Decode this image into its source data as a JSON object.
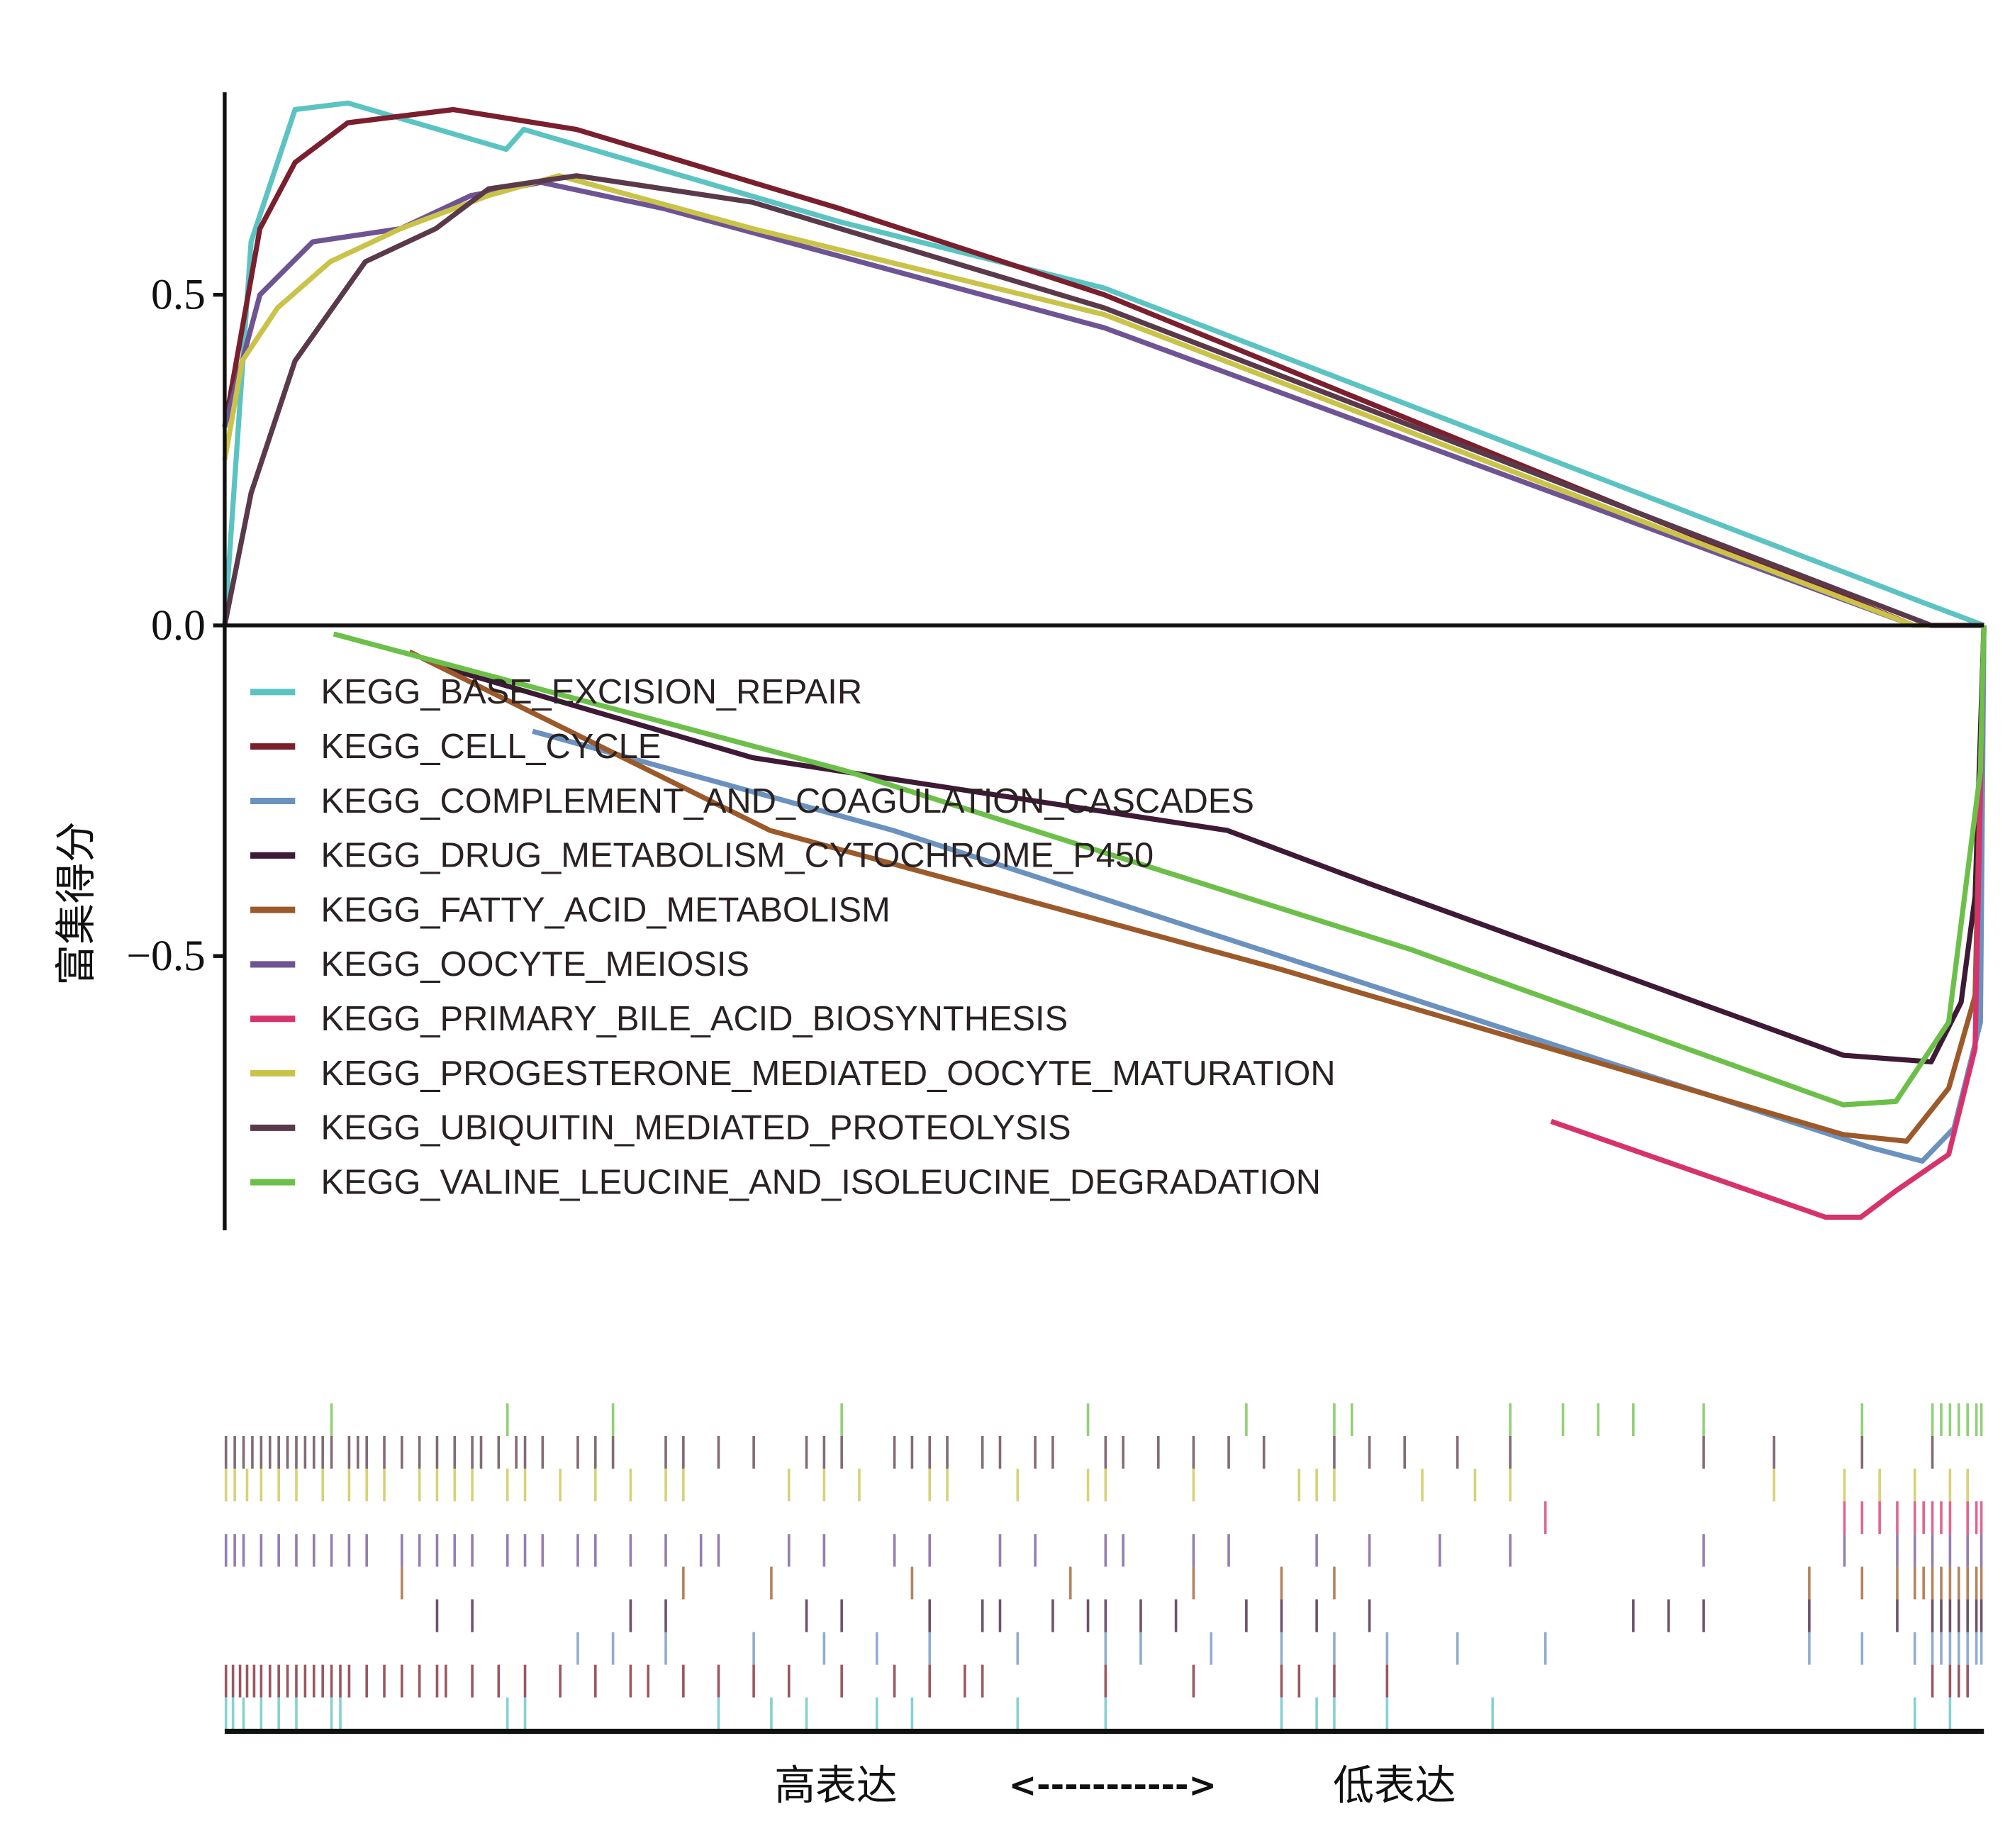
{
  "chart_data": {
    "type": "line",
    "title": "",
    "ylabel": "富集得分",
    "xlabel": {
      "left": "高表达",
      "arrow": "<----------->",
      "right": "低表达"
    },
    "ylim": [
      -0.915,
      0.806
    ],
    "xlim": [
      0,
      1
    ],
    "yticks": [
      {
        "v": 0.5,
        "label": "0.5"
      },
      {
        "v": 0.0,
        "label": "0.0"
      },
      {
        "v": -0.5,
        "label": "−0.5"
      }
    ],
    "grid": false,
    "legend_position": "center-left",
    "series": [
      {
        "name": "KEGG_BASE_EXCISION_REPAIR",
        "color": "#5cc3c3",
        "x": [
          0,
          0.015,
          0.04,
          0.07,
          0.16,
          0.17,
          0.35,
          0.5,
          0.965,
          1
        ],
        "y": [
          0,
          0.58,
          0.78,
          0.79,
          0.72,
          0.75,
          0.61,
          0.51,
          0.035,
          0
        ],
        "hits": [
          0,
          0.004,
          0.01,
          0.02,
          0.03,
          0.04,
          0.06,
          0.065,
          0.16,
          0.17,
          0.28,
          0.31,
          0.33,
          0.37,
          0.39,
          0.45,
          0.5,
          0.6,
          0.62,
          0.63,
          0.66,
          0.72,
          0.96,
          0.98
        ]
      },
      {
        "name": "KEGG_CELL_CYCLE",
        "color": "#7a1f2e",
        "x": [
          0,
          0.02,
          0.04,
          0.07,
          0.13,
          0.2,
          0.35,
          0.5,
          0.96,
          1
        ],
        "y": [
          0.3,
          0.6,
          0.7,
          0.76,
          0.78,
          0.75,
          0.63,
          0.5,
          0,
          0
        ],
        "hits": [
          0,
          0.004,
          0.008,
          0.012,
          0.016,
          0.02,
          0.025,
          0.03,
          0.035,
          0.04,
          0.045,
          0.05,
          0.055,
          0.06,
          0.065,
          0.07,
          0.08,
          0.09,
          0.1,
          0.11,
          0.12,
          0.125,
          0.14,
          0.155,
          0.17,
          0.19,
          0.21,
          0.23,
          0.24,
          0.26,
          0.28,
          0.3,
          0.32,
          0.35,
          0.38,
          0.4,
          0.42,
          0.43,
          0.5,
          0.55,
          0.6,
          0.61,
          0.63,
          0.66,
          0.97,
          0.98,
          0.985,
          0.99
        ]
      },
      {
        "name": "KEGG_COMPLEMENT_AND_COAGULATION_CASCADES",
        "color": "#6b92bf",
        "x": [
          0.175,
          0.38,
          0.6,
          0.936,
          0.965,
          0.983,
          0.998,
          1
        ],
        "y": [
          -0.16,
          -0.31,
          -0.5,
          -0.79,
          -0.81,
          -0.76,
          -0.6,
          0
        ],
        "hits": [
          0.2,
          0.22,
          0.25,
          0.3,
          0.34,
          0.37,
          0.4,
          0.45,
          0.5,
          0.52,
          0.56,
          0.6,
          0.63,
          0.66,
          0.7,
          0.75,
          0.9,
          0.93,
          0.96,
          0.97,
          0.975,
          0.98,
          0.985,
          0.99,
          0.995,
          1.0
        ]
      },
      {
        "name": "KEGG_DRUG_METABOLISM_CYTOCHROME_P450",
        "color": "#3e1a36",
        "x": [
          0.12,
          0.3,
          0.57,
          0.65,
          0.92,
          0.97,
          0.987,
          0.995,
          1
        ],
        "y": [
          -0.06,
          -0.2,
          -0.31,
          -0.39,
          -0.65,
          -0.66,
          -0.57,
          -0.41,
          0
        ],
        "hits": [
          0.12,
          0.14,
          0.23,
          0.25,
          0.33,
          0.35,
          0.4,
          0.43,
          0.44,
          0.47,
          0.49,
          0.5,
          0.52,
          0.54,
          0.58,
          0.6,
          0.62,
          0.65,
          0.8,
          0.82,
          0.84,
          0.9,
          0.95,
          0.97,
          0.975,
          0.98,
          0.985,
          0.99,
          0.995,
          1.0
        ]
      },
      {
        "name": "KEGG_FATTY_ACID_METABOLISM",
        "color": "#9c5a2a",
        "x": [
          0.105,
          0.31,
          0.6,
          0.92,
          0.956,
          0.98,
          0.995,
          1
        ],
        "y": [
          -0.04,
          -0.31,
          -0.52,
          -0.77,
          -0.78,
          -0.7,
          -0.56,
          0
        ],
        "hits": [
          0.1,
          0.26,
          0.31,
          0.39,
          0.48,
          0.55,
          0.6,
          0.63,
          0.9,
          0.93,
          0.95,
          0.96,
          0.965,
          0.97,
          0.975,
          0.98,
          0.985,
          0.99,
          0.995,
          1.0
        ]
      },
      {
        "name": "KEGG_OOCYTE_MEIOSIS",
        "color": "#6f5494",
        "x": [
          0,
          0.02,
          0.05,
          0.1,
          0.14,
          0.18,
          0.25,
          0.5,
          0.96,
          1
        ],
        "y": [
          0.3,
          0.5,
          0.58,
          0.6,
          0.65,
          0.67,
          0.63,
          0.45,
          0,
          0
        ],
        "hits": [
          0,
          0.005,
          0.01,
          0.02,
          0.03,
          0.04,
          0.05,
          0.06,
          0.07,
          0.08,
          0.1,
          0.11,
          0.12,
          0.13,
          0.14,
          0.16,
          0.17,
          0.18,
          0.2,
          0.21,
          0.23,
          0.25,
          0.27,
          0.28,
          0.32,
          0.34,
          0.38,
          0.4,
          0.44,
          0.46,
          0.5,
          0.51,
          0.55,
          0.57,
          0.62,
          0.65,
          0.69,
          0.73,
          0.84,
          0.92,
          0.95,
          0.96,
          0.97,
          0.98,
          0.99,
          1.0
        ]
      },
      {
        "name": "KEGG_PRIMARY_BILE_ACID_BIOSYNTHESIS",
        "color": "#d6336c",
        "x": [
          0.754,
          0.91,
          0.93,
          0.95,
          0.98,
          0.995,
          1
        ],
        "y": [
          -0.75,
          -0.895,
          -0.895,
          -0.855,
          -0.8,
          -0.64,
          0
        ],
        "hits": [
          0.75,
          0.92,
          0.93,
          0.94,
          0.95,
          0.96,
          0.965,
          0.97,
          0.975,
          0.98,
          0.99,
          0.995,
          1.0
        ]
      },
      {
        "name": "KEGG_PROGESTERONE_MEDIATED_OOCYTE_MATURATION",
        "color": "#c9c34a",
        "x": [
          0,
          0.01,
          0.03,
          0.06,
          0.1,
          0.15,
          0.19,
          0.3,
          0.5,
          0.96,
          1
        ],
        "y": [
          0.25,
          0.4,
          0.48,
          0.55,
          0.6,
          0.65,
          0.68,
          0.6,
          0.47,
          0,
          0
        ],
        "hits": [
          0,
          0.005,
          0.012,
          0.02,
          0.03,
          0.04,
          0.055,
          0.07,
          0.08,
          0.09,
          0.11,
          0.12,
          0.13,
          0.14,
          0.16,
          0.17,
          0.19,
          0.21,
          0.23,
          0.25,
          0.26,
          0.32,
          0.34,
          0.36,
          0.4,
          0.41,
          0.45,
          0.49,
          0.5,
          0.55,
          0.61,
          0.62,
          0.63,
          0.68,
          0.71,
          0.73,
          0.88,
          0.92,
          0.94,
          0.96,
          0.98,
          0.99
        ]
      },
      {
        "name": "KEGG_UBIQUITIN_MEDIATED_PROTEOLYSIS",
        "color": "#5a3a4a",
        "x": [
          0,
          0.015,
          0.04,
          0.08,
          0.12,
          0.15,
          0.2,
          0.3,
          0.5,
          0.97,
          1
        ],
        "y": [
          0,
          0.2,
          0.4,
          0.55,
          0.6,
          0.66,
          0.68,
          0.64,
          0.48,
          0,
          0
        ],
        "hits": [
          0,
          0.005,
          0.01,
          0.015,
          0.02,
          0.025,
          0.03,
          0.035,
          0.04,
          0.045,
          0.05,
          0.055,
          0.06,
          0.07,
          0.075,
          0.08,
          0.09,
          0.1,
          0.11,
          0.12,
          0.13,
          0.14,
          0.145,
          0.155,
          0.165,
          0.17,
          0.18,
          0.2,
          0.21,
          0.22,
          0.25,
          0.26,
          0.28,
          0.3,
          0.33,
          0.34,
          0.35,
          0.38,
          0.39,
          0.4,
          0.41,
          0.43,
          0.44,
          0.46,
          0.47,
          0.5,
          0.51,
          0.53,
          0.55,
          0.57,
          0.59,
          0.63,
          0.65,
          0.67,
          0.7,
          0.73,
          0.84,
          0.88,
          0.93,
          0.97
        ]
      },
      {
        "name": "KEGG_VALINE_LEUCINE_AND_ISOLEUCINE_DEGRADATION",
        "color": "#6cc04a",
        "x": [
          0.062,
          0.353,
          0.674,
          0.92,
          0.95,
          0.98,
          0.998,
          1
        ],
        "y": [
          -0.013,
          -0.22,
          -0.49,
          -0.725,
          -0.72,
          -0.6,
          -0.22,
          0
        ],
        "hits": [
          0.06,
          0.16,
          0.22,
          0.35,
          0.49,
          0.58,
          0.63,
          0.64,
          0.73,
          0.76,
          0.78,
          0.8,
          0.84,
          0.93,
          0.97,
          0.975,
          0.98,
          0.985,
          0.99,
          0.995,
          1.0
        ]
      }
    ],
    "barcode_row_order": [
      9,
      8,
      7,
      6,
      5,
      4,
      3,
      2,
      1,
      0
    ]
  }
}
